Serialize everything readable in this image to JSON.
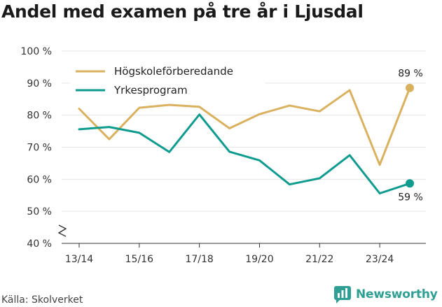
{
  "title": "Andel med examen på tre år i Ljusdal",
  "source": "Källa: Skolverket",
  "brand": {
    "name": "Newsworthy",
    "icon": "newsworthy-logo-icon",
    "color": "#2e9f92"
  },
  "chart_data": {
    "type": "line",
    "title": "Andel med examen på tre år i Ljusdal",
    "x": [
      1,
      2,
      3,
      4,
      5,
      6,
      7,
      8,
      9,
      10,
      11,
      12
    ],
    "xticks": [
      {
        "x": 1,
        "label": "13/14"
      },
      {
        "x": 3,
        "label": "15/16"
      },
      {
        "x": 5,
        "label": "17/18"
      },
      {
        "x": 7,
        "label": "19/20"
      },
      {
        "x": 9,
        "label": "21/22"
      },
      {
        "x": 11,
        "label": "23/24"
      }
    ],
    "yticks": [
      "40 %",
      "50 %",
      "60 %",
      "70 %",
      "80 %",
      "90 %",
      "100 %"
    ],
    "ylim": [
      40,
      100
    ],
    "y_axis_break": true,
    "grid": true,
    "legend_position": "top-left",
    "series": [
      {
        "name": "Högskoleförberedande",
        "color": "#d9b15f",
        "values": [
          82,
          72.5,
          82.3,
          83.2,
          82.6,
          75.9,
          80.3,
          83,
          81.2,
          87.8,
          64.5,
          88.5
        ],
        "end_label": "89 %"
      },
      {
        "name": "Yrkesprogram",
        "color": "#0f9b8e",
        "values": [
          75.6,
          76.3,
          74.5,
          68.5,
          80.2,
          68.6,
          65.9,
          58.4,
          60.3,
          67.5,
          55.6,
          58.7
        ],
        "end_label": "59 %"
      }
    ]
  }
}
